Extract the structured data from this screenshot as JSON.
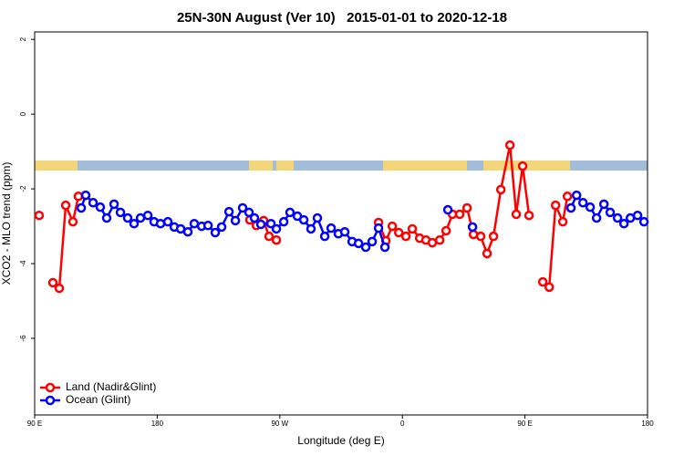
{
  "chart_data": {
    "type": "line",
    "title": "25N-30N August (Ver 10)   2015-01-01 to 2020-12-18",
    "x_label": "Longitude (deg E)",
    "y_label": "XCO2 - MLO trend (ppm)",
    "xlim": [
      90,
      540
    ],
    "ylim": [
      -8.05,
      2.2
    ],
    "xticks": [
      {
        "value": 90,
        "label": "90 E"
      },
      180,
      {
        "value": 270,
        "label": "90 W"
      },
      {
        "value": 360,
        "label": "0"
      },
      {
        "value": 450,
        "label": "90 E"
      },
      {
        "value": 540,
        "label": "180"
      }
    ],
    "yticks": [
      2,
      0,
      -2,
      -4,
      -6
    ],
    "legend": "bottom-left",
    "series": [
      {
        "name": "Land (Nadir&Glint)",
        "color": "#ff0000",
        "x": [
          93.3,
          null,
          103.4,
          108.1,
          112.8,
          118.1,
          122.1,
          null,
          248,
          252.8,
          258.1,
          262.1,
          267.5,
          null,
          342.5,
          347.9,
          352.6,
          357.3,
          362.6,
          367.3,
          372.7,
          377.3,
          382,
          387.4,
          392.1,
          396.8,
          402.1,
          407.5,
          412.2,
          417.5,
          422.2,
          426.9,
          432.3,
          439,
          443.6,
          448.3,
          453,
          null,
          463.1,
          467.8,
          472.5,
          477.8,
          481.2
        ],
        "values": [
          -2.71,
          null,
          -4.51,
          -4.66,
          -2.44,
          -2.88,
          -2.2,
          null,
          -2.83,
          -2.98,
          -2.85,
          -3.27,
          -3.37,
          null,
          -2.9,
          -3.39,
          -3.0,
          -3.17,
          -3.27,
          -3.07,
          -3.32,
          -3.37,
          -3.44,
          -3.37,
          -3.12,
          -2.68,
          -2.68,
          -2.51,
          -3.22,
          -3.27,
          -3.73,
          -3.27,
          -2.02,
          -0.83,
          -2.68,
          -1.39,
          -2.71,
          null,
          -4.49,
          -4.63,
          -2.44,
          -2.88,
          -2.2
        ]
      },
      {
        "name": "Ocean (Glint)",
        "color": "#0000ff",
        "x": [
          124.2,
          127.5,
          132.9,
          138.2,
          142.9,
          148.3,
          153,
          158.3,
          163,
          167.7,
          173.1,
          177.7,
          182.4,
          187.8,
          192.5,
          197.2,
          202.5,
          207.2,
          212.6,
          217.3,
          222.6,
          227.3,
          232.7,
          237.4,
          242.7,
          247.4,
          251.4,
          256.1,
          263.5,
          267.5,
          272.9,
          277.5,
          282.9,
          287.6,
          292.9,
          297.6,
          303,
          307.7,
          313,
          317.7,
          323.1,
          327.8,
          333.1,
          337.8,
          342.5,
          347.2,
          null,
          393.4,
          null,
          411.5,
          null,
          483.8,
          487.9,
          492.6,
          497.9,
          502.6,
          508,
          512.6,
          518,
          522.7,
          527.4,
          532.7,
          537.4
        ],
        "values": [
          -2.51,
          -2.17,
          -2.37,
          -2.49,
          -2.78,
          -2.41,
          -2.63,
          -2.78,
          -2.93,
          -2.78,
          -2.71,
          -2.88,
          -2.93,
          -2.88,
          -3.02,
          -3.07,
          -3.15,
          -2.93,
          -3.0,
          -2.98,
          -3.17,
          -3.02,
          -2.61,
          -2.85,
          -2.51,
          -2.63,
          -2.78,
          -2.95,
          -2.93,
          -3.07,
          -2.88,
          -2.63,
          -2.73,
          -2.83,
          -3.07,
          -2.78,
          -3.27,
          -3.05,
          -3.2,
          -3.15,
          -3.41,
          -3.46,
          -3.56,
          -3.41,
          -3.05,
          -3.56,
          null,
          -2.56,
          null,
          -3.02,
          null,
          -2.51,
          -2.17,
          -2.37,
          -2.49,
          -2.78,
          -2.41,
          -2.63,
          -2.78,
          -2.93,
          -2.78,
          -2.71,
          -2.88
        ]
      }
    ]
  }
}
